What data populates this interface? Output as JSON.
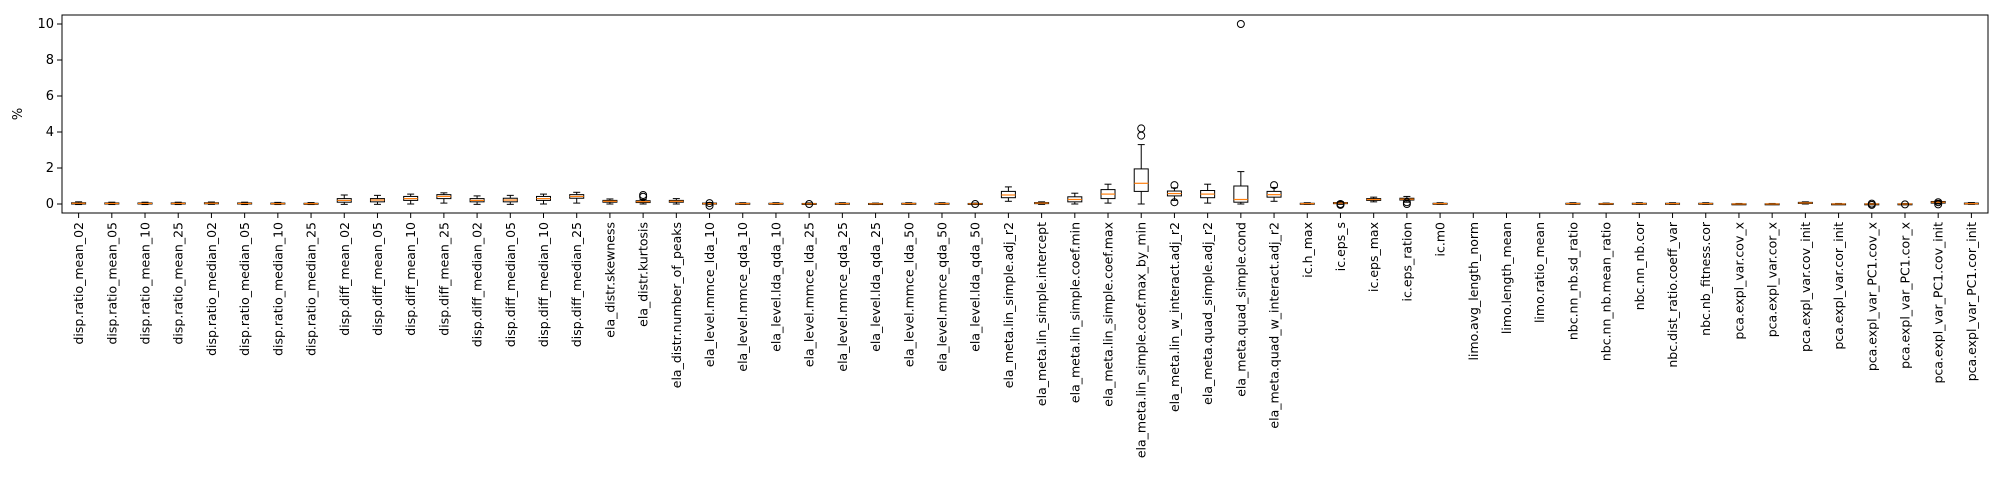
{
  "chart_data": {
    "type": "boxplot",
    "title": "",
    "xlabel": "",
    "ylabel": "%",
    "ylim": [
      -0.5,
      10.5
    ],
    "yticks": [
      0,
      2,
      4,
      6,
      8,
      10
    ],
    "grid": false,
    "colors": {
      "box": "#000000",
      "median": "#ff7f0e",
      "flier": "#000000"
    },
    "categories": [
      "disp.ratio_mean_02",
      "disp.ratio_mean_05",
      "disp.ratio_mean_10",
      "disp.ratio_mean_25",
      "disp.ratio_median_02",
      "disp.ratio_median_05",
      "disp.ratio_median_10",
      "disp.ratio_median_25",
      "disp.diff_mean_02",
      "disp.diff_mean_05",
      "disp.diff_mean_10",
      "disp.diff_mean_25",
      "disp.diff_median_02",
      "disp.diff_median_05",
      "disp.diff_median_10",
      "disp.diff_median_25",
      "ela_distr.skewness",
      "ela_distr.kurtosis",
      "ela_distr.number_of_peaks",
      "ela_level.mmce_lda_10",
      "ela_level.mmce_qda_10",
      "ela_level.lda_qda_10",
      "ela_level.mmce_lda_25",
      "ela_level.mmce_qda_25",
      "ela_level.lda_qda_25",
      "ela_level.mmce_lda_50",
      "ela_level.mmce_qda_50",
      "ela_level.lda_qda_50",
      "ela_meta.lin_simple.adj_r2",
      "ela_meta.lin_simple.intercept",
      "ela_meta.lin_simple.coef.min",
      "ela_meta.lin_simple.coef.max",
      "ela_meta.lin_simple.coef.max_by_min",
      "ela_meta.lin_w_interact.adj_r2",
      "ela_meta.quad_simple.adj_r2",
      "ela_meta.quad_simple.cond",
      "ela_meta.quad_w_interact.adj_r2",
      "ic.h_max",
      "ic.eps_s",
      "ic.eps_max",
      "ic.eps_ration",
      "ic.m0",
      "limo.avg_length_norm",
      "limo.length_mean",
      "limo.ratio_mean",
      "nbc.nn_nb.sd_ratio",
      "nbc.nn_nb.mean_ratio",
      "nbc.nn_nb.cor",
      "nbc.dist_ratio.coeff_var",
      "nbc.nb_fitness.cor",
      "pca.expl_var.cov_x",
      "pca.expl_var.cor_x",
      "pca.expl_var.cov_init",
      "pca.expl_var.cor_init",
      "pca.expl_var_PC1.cov_x",
      "pca.expl_var_PC1.cor_x",
      "pca.expl_var_PC1.cov_init",
      "pca.expl_var_PC1.cor_init"
    ],
    "boxes": [
      {
        "whislo": -0.03,
        "q1": 0.0,
        "med": 0.04,
        "q3": 0.07,
        "whishi": 0.12,
        "fliers": []
      },
      {
        "whislo": -0.03,
        "q1": 0.0,
        "med": 0.03,
        "q3": 0.06,
        "whishi": 0.1,
        "fliers": []
      },
      {
        "whislo": -0.03,
        "q1": 0.0,
        "med": 0.03,
        "q3": 0.06,
        "whishi": 0.1,
        "fliers": []
      },
      {
        "whislo": -0.03,
        "q1": 0.0,
        "med": 0.03,
        "q3": 0.06,
        "whishi": 0.1,
        "fliers": []
      },
      {
        "whislo": -0.02,
        "q1": 0.01,
        "med": 0.04,
        "q3": 0.07,
        "whishi": 0.11,
        "fliers": []
      },
      {
        "whislo": -0.03,
        "q1": 0.0,
        "med": 0.03,
        "q3": 0.06,
        "whishi": 0.1,
        "fliers": []
      },
      {
        "whislo": -0.03,
        "q1": 0.0,
        "med": 0.02,
        "q3": 0.05,
        "whishi": 0.09,
        "fliers": []
      },
      {
        "whislo": -0.03,
        "q1": -0.01,
        "med": 0.02,
        "q3": 0.04,
        "whishi": 0.08,
        "fliers": []
      },
      {
        "whislo": -0.02,
        "q1": 0.1,
        "med": 0.2,
        "q3": 0.3,
        "whishi": 0.5,
        "fliers": []
      },
      {
        "whislo": -0.02,
        "q1": 0.12,
        "med": 0.22,
        "q3": 0.3,
        "whishi": 0.48,
        "fliers": []
      },
      {
        "whislo": 0.0,
        "q1": 0.2,
        "med": 0.3,
        "q3": 0.42,
        "whishi": 0.55,
        "fliers": []
      },
      {
        "whislo": 0.05,
        "q1": 0.3,
        "med": 0.42,
        "q3": 0.52,
        "whishi": 0.62,
        "fliers": []
      },
      {
        "whislo": -0.02,
        "q1": 0.12,
        "med": 0.2,
        "q3": 0.3,
        "whishi": 0.45,
        "fliers": []
      },
      {
        "whislo": -0.02,
        "q1": 0.12,
        "med": 0.22,
        "q3": 0.32,
        "whishi": 0.48,
        "fliers": []
      },
      {
        "whislo": 0.0,
        "q1": 0.2,
        "med": 0.3,
        "q3": 0.42,
        "whishi": 0.55,
        "fliers": []
      },
      {
        "whislo": 0.05,
        "q1": 0.32,
        "med": 0.42,
        "q3": 0.52,
        "whishi": 0.65,
        "fliers": []
      },
      {
        "whislo": 0.0,
        "q1": 0.1,
        "med": 0.15,
        "q3": 0.2,
        "whishi": 0.28,
        "fliers": []
      },
      {
        "whislo": 0.0,
        "q1": 0.08,
        "med": 0.13,
        "q3": 0.18,
        "whishi": 0.25,
        "fliers": [
          0.4,
          0.5
        ]
      },
      {
        "whislo": 0.0,
        "q1": 0.1,
        "med": 0.15,
        "q3": 0.2,
        "whishi": 0.3,
        "fliers": []
      },
      {
        "whislo": -0.02,
        "q1": 0.0,
        "med": 0.02,
        "q3": 0.05,
        "whishi": 0.08,
        "fliers": [
          -0.1,
          0.05
        ]
      },
      {
        "whislo": -0.02,
        "q1": 0.0,
        "med": 0.02,
        "q3": 0.04,
        "whishi": 0.07,
        "fliers": []
      },
      {
        "whislo": -0.02,
        "q1": 0.0,
        "med": 0.02,
        "q3": 0.04,
        "whishi": 0.07,
        "fliers": []
      },
      {
        "whislo": -0.03,
        "q1": -0.01,
        "med": 0.01,
        "q3": 0.03,
        "whishi": 0.06,
        "fliers": [
          0.0
        ]
      },
      {
        "whislo": -0.02,
        "q1": 0.0,
        "med": 0.02,
        "q3": 0.04,
        "whishi": 0.07,
        "fliers": []
      },
      {
        "whislo": -0.03,
        "q1": -0.01,
        "med": 0.01,
        "q3": 0.03,
        "whishi": 0.05,
        "fliers": []
      },
      {
        "whislo": -0.02,
        "q1": 0.0,
        "med": 0.02,
        "q3": 0.04,
        "whishi": 0.07,
        "fliers": []
      },
      {
        "whislo": -0.02,
        "q1": 0.0,
        "med": 0.02,
        "q3": 0.04,
        "whishi": 0.07,
        "fliers": []
      },
      {
        "whislo": -0.03,
        "q1": -0.01,
        "med": 0.01,
        "q3": 0.03,
        "whishi": 0.05,
        "fliers": [
          0.0
        ]
      },
      {
        "whislo": 0.15,
        "q1": 0.35,
        "med": 0.5,
        "q3": 0.7,
        "whishi": 0.95,
        "fliers": []
      },
      {
        "whislo": -0.02,
        "q1": 0.02,
        "med": 0.05,
        "q3": 0.08,
        "whishi": 0.12,
        "fliers": []
      },
      {
        "whislo": 0.0,
        "q1": 0.12,
        "med": 0.25,
        "q3": 0.4,
        "whishi": 0.6,
        "fliers": []
      },
      {
        "whislo": 0.05,
        "q1": 0.3,
        "med": 0.55,
        "q3": 0.8,
        "whishi": 1.1,
        "fliers": []
      },
      {
        "whislo": 0.0,
        "q1": 0.7,
        "med": 1.15,
        "q3": 1.95,
        "whishi": 3.3,
        "fliers": [
          3.8,
          4.2
        ]
      },
      {
        "whislo": 0.2,
        "q1": 0.45,
        "med": 0.58,
        "q3": 0.72,
        "whishi": 0.9,
        "fliers": [
          0.1,
          1.05
        ]
      },
      {
        "whislo": 0.05,
        "q1": 0.35,
        "med": 0.55,
        "q3": 0.75,
        "whishi": 1.1,
        "fliers": []
      },
      {
        "whislo": 0.0,
        "q1": 0.1,
        "med": 0.25,
        "q3": 1.0,
        "whishi": 1.8,
        "fliers": [
          10.0
        ]
      },
      {
        "whislo": 0.15,
        "q1": 0.38,
        "med": 0.52,
        "q3": 0.7,
        "whishi": 0.92,
        "fliers": [
          1.05
        ]
      },
      {
        "whislo": -0.02,
        "q1": 0.0,
        "med": 0.02,
        "q3": 0.04,
        "whishi": 0.07,
        "fliers": []
      },
      {
        "whislo": -0.02,
        "q1": 0.02,
        "med": 0.05,
        "q3": 0.08,
        "whishi": 0.12,
        "fliers": [
          -0.05,
          0.0
        ]
      },
      {
        "whislo": 0.12,
        "q1": 0.2,
        "med": 0.25,
        "q3": 0.3,
        "whishi": 0.38,
        "fliers": []
      },
      {
        "whislo": 0.1,
        "q1": 0.22,
        "med": 0.27,
        "q3": 0.32,
        "whishi": 0.42,
        "fliers": [
          0.0,
          0.1
        ]
      },
      {
        "whislo": -0.02,
        "q1": 0.0,
        "med": 0.02,
        "q3": 0.04,
        "whishi": 0.07,
        "fliers": []
      },
      null,
      null,
      null,
      {
        "whislo": -0.02,
        "q1": 0.0,
        "med": 0.02,
        "q3": 0.04,
        "whishi": 0.07,
        "fliers": []
      },
      {
        "whislo": -0.03,
        "q1": -0.01,
        "med": 0.01,
        "q3": 0.03,
        "whishi": 0.05,
        "fliers": []
      },
      {
        "whislo": -0.02,
        "q1": 0.0,
        "med": 0.02,
        "q3": 0.04,
        "whishi": 0.07,
        "fliers": []
      },
      {
        "whislo": -0.02,
        "q1": 0.0,
        "med": 0.02,
        "q3": 0.04,
        "whishi": 0.07,
        "fliers": []
      },
      {
        "whislo": -0.02,
        "q1": 0.0,
        "med": 0.02,
        "q3": 0.04,
        "whishi": 0.07,
        "fliers": []
      },
      {
        "whislo": -0.03,
        "q1": -0.02,
        "med": 0.0,
        "q3": 0.01,
        "whishi": 0.03,
        "fliers": []
      },
      {
        "whislo": -0.03,
        "q1": -0.02,
        "med": 0.0,
        "q3": 0.01,
        "whishi": 0.03,
        "fliers": []
      },
      {
        "whislo": 0.0,
        "q1": 0.03,
        "med": 0.06,
        "q3": 0.09,
        "whishi": 0.12,
        "fliers": []
      },
      {
        "whislo": -0.03,
        "q1": -0.02,
        "med": 0.0,
        "q3": 0.01,
        "whishi": 0.03,
        "fliers": []
      },
      {
        "whislo": -0.03,
        "q1": -0.02,
        "med": 0.0,
        "q3": 0.01,
        "whishi": 0.03,
        "fliers": [
          -0.05,
          0.02
        ]
      },
      {
        "whislo": -0.03,
        "q1": -0.02,
        "med": 0.0,
        "q3": 0.01,
        "whishi": 0.03,
        "fliers": [
          -0.02
        ]
      },
      {
        "whislo": 0.0,
        "q1": 0.05,
        "med": 0.1,
        "q3": 0.14,
        "whishi": 0.2,
        "fliers": [
          -0.02,
          0.1
        ]
      },
      {
        "whislo": -0.02,
        "q1": 0.0,
        "med": 0.02,
        "q3": 0.05,
        "whishi": 0.08,
        "fliers": []
      }
    ]
  }
}
